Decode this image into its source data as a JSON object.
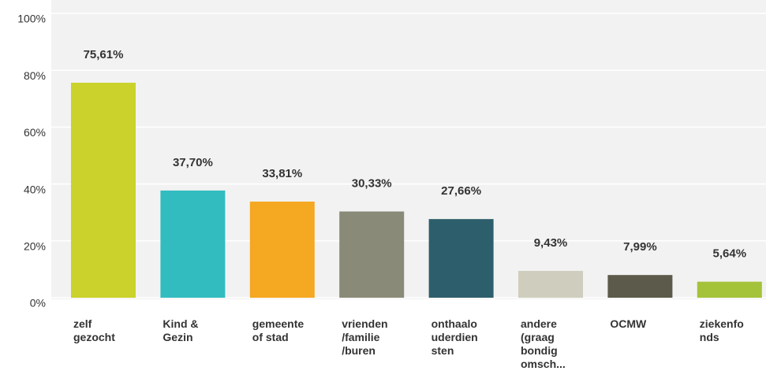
{
  "chart_data": {
    "type": "bar",
    "categories": [
      "zelf\ngezocht",
      "Kind &\nGezin",
      "gemeente\nof stad",
      "vrienden\n/familie\n/buren",
      "onthaalo\nuderdien\nsten",
      "andere\n(graag\nbondig\nomsch...",
      "OCMW",
      "ziekenfo\nnds"
    ],
    "values": [
      75.61,
      37.7,
      33.81,
      30.33,
      27.66,
      9.43,
      7.99,
      5.64
    ],
    "value_labels": [
      "75,61%",
      "37,70%",
      "33,81%",
      "30,33%",
      "27,66%",
      "9,43%",
      "7,99%",
      "5,64%"
    ],
    "colors": [
      "#cbd22b",
      "#32bcc0",
      "#f5a822",
      "#8a8a78",
      "#2d5e6b",
      "#cfcdbd",
      "#5c5b4b",
      "#a4c23a"
    ],
    "ylim": [
      0,
      100
    ],
    "yticks": [
      {
        "value": 0,
        "label": "0%"
      },
      {
        "value": 20,
        "label": "20%"
      },
      {
        "value": 40,
        "label": "40%"
      },
      {
        "value": 60,
        "label": "60%"
      },
      {
        "value": 80,
        "label": "80%"
      },
      {
        "value": 100,
        "label": "100%"
      }
    ],
    "grid": true
  }
}
